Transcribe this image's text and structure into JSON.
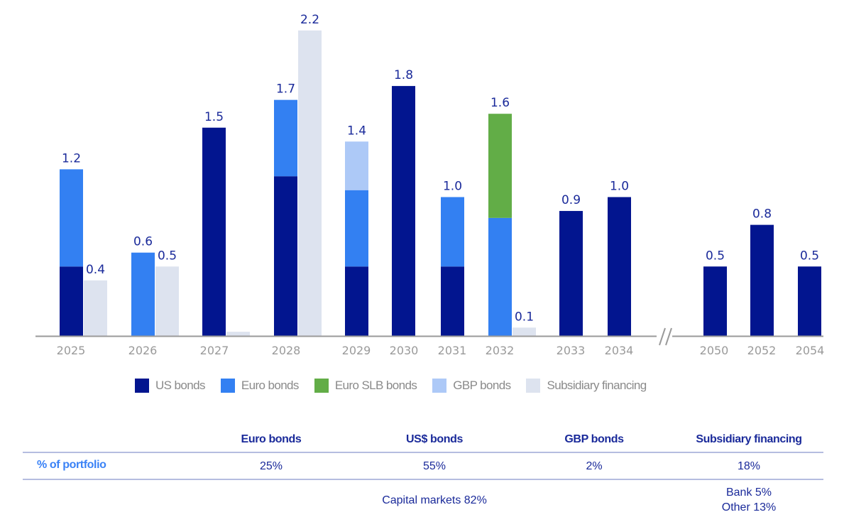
{
  "chart_data": {
    "type": "bar",
    "title": "",
    "xlabel": "",
    "ylabel": "",
    "ylim": [
      0,
      2.2
    ],
    "grid": false,
    "axis_break_between": [
      "2034",
      "2050"
    ],
    "legend_position": "bottom",
    "categories": [
      "2025",
      "2026",
      "2027",
      "2028",
      "2029",
      "2030",
      "2031",
      "2032",
      "2033",
      "2034",
      "2050",
      "2052",
      "2054"
    ],
    "stacked_series": [
      {
        "name": "US bonds",
        "color": "#02158f",
        "values": [
          0.5,
          0,
          1.5,
          1.15,
          0.5,
          1.8,
          0.5,
          0,
          0.9,
          1.0,
          0.5,
          0.8,
          0.5
        ]
      },
      {
        "name": "Euro bonds",
        "color": "#3380f2",
        "values": [
          0.7,
          0.6,
          0,
          0.55,
          0.55,
          0,
          0.5,
          0.85,
          0,
          0,
          0,
          0,
          0
        ]
      },
      {
        "name": "Euro SLB bonds",
        "color": "#62ad47",
        "values": [
          0,
          0,
          0,
          0,
          0,
          0,
          0,
          0.75,
          0,
          0,
          0,
          0,
          0
        ]
      },
      {
        "name": "GBP bonds",
        "color": "#adc9f7",
        "values": [
          0,
          0,
          0,
          0,
          0.35,
          0,
          0,
          0,
          0,
          0,
          0,
          0,
          0
        ]
      }
    ],
    "stack_totals": [
      "1.2",
      "0.6",
      "1.5",
      "1.7",
      "1.4",
      "1.8",
      "1.0",
      "1.6",
      "0.9",
      "1.0",
      "0.5",
      "0.8",
      "0.5"
    ],
    "side_series": {
      "name": "Subsidiary financing",
      "color": "#dde3ef",
      "values": [
        0.4,
        0.5,
        0.03,
        2.2,
        null,
        null,
        null,
        0.06,
        null,
        null,
        null,
        null,
        null
      ],
      "labels": [
        "0.4",
        "0.5",
        "",
        "2.2",
        "",
        "",
        "",
        "0.1",
        "",
        "",
        "",
        "",
        ""
      ]
    }
  },
  "legend": [
    {
      "label": "US bonds",
      "color": "#02158f"
    },
    {
      "label": "Euro bonds",
      "color": "#3380f2"
    },
    {
      "label": "Euro SLB bonds",
      "color": "#62ad47"
    },
    {
      "label": "GBP bonds",
      "color": "#adc9f7"
    },
    {
      "label": "Subsidiary financing",
      "color": "#dde3ef"
    }
  ],
  "table": {
    "headers": [
      "Euro bonds",
      "US$ bonds",
      "GBP bonds",
      "Subsidiary financing"
    ],
    "row_label": "% of portfolio",
    "values": [
      "25%",
      "55%",
      "2%",
      "18%"
    ],
    "capital_markets": "Capital markets 82%",
    "subsidiary_breakdown": [
      "Bank 5%",
      "Other 13%"
    ]
  }
}
